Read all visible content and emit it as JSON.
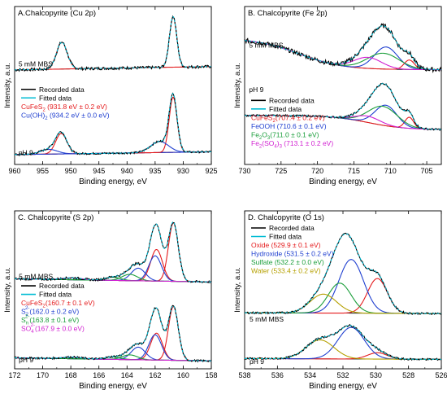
{
  "chart_data": [
    {
      "type": "line",
      "title": "A.Chalcopyrite (Cu 2p)",
      "xlabel": "Binding energy, eV",
      "ylabel": "Intensity, a.u.",
      "xlim": [
        960,
        925
      ],
      "xticks": [
        960,
        955,
        950,
        945,
        940,
        935,
        930,
        925
      ],
      "ylim": [
        0,
        100
      ],
      "labels": [
        {
          "text": "5 mM MBS",
          "x": 959.3,
          "y": 62,
          "color": "#000000"
        },
        {
          "text": "pH 9",
          "x": 959.3,
          "y": 6,
          "color": "#000000"
        }
      ],
      "legend": [
        {
          "kind": "line",
          "color": "#000000",
          "text": "Recorded data"
        },
        {
          "kind": "line",
          "color": "#00bcd4",
          "text": "Fitted data"
        },
        {
          "kind": "text",
          "color": "#e41a1c",
          "text": "CuFeS",
          "sub": "2",
          "rest": " (931.8 eV ± 0.2 eV)"
        },
        {
          "kind": "text",
          "color": "#1f3fd0",
          "text": "Cu(OH)",
          "sub": "2",
          "rest": " (934.2 eV ± 0.0 eV)"
        }
      ],
      "traces": [
        {
          "name": "5 mM MBS",
          "baseline": 62,
          "drift": -0.06,
          "noise": 0.9,
          "peaks": [
            {
              "center": 951.6,
              "height": 17,
              "width": 0.95,
              "color": "#e41a1c"
            },
            {
              "center": 931.8,
              "height": 32,
              "width": 0.65,
              "color": "#e41a1c"
            }
          ]
        },
        {
          "name": "pH 9",
          "baseline": 8,
          "drift": -0.05,
          "noise": 0.6,
          "peaks": [
            {
              "center": 951.7,
              "height": 13,
              "width": 1.0,
              "color": "#e41a1c"
            },
            {
              "center": 953.9,
              "height": 3,
              "width": 1.5,
              "color": "#1f3fd0"
            },
            {
              "center": 931.8,
              "height": 35,
              "width": 0.7,
              "color": "#e41a1c"
            },
            {
              "center": 934.2,
              "height": 7,
              "width": 1.6,
              "color": "#1f3fd0"
            }
          ]
        }
      ]
    },
    {
      "type": "line",
      "title": "B. Chalcopyrite (Fe 2p)",
      "xlabel": "Binding energy, eV",
      "ylabel": "Intensity, a.u.",
      "xlim": [
        730,
        703
      ],
      "xticks": [
        730,
        725,
        720,
        715,
        710,
        705
      ],
      "ylim": [
        0,
        100
      ],
      "labels": [
        {
          "text": "5 mM MBS",
          "x": 729.4,
          "y": 74,
          "color": "#000000"
        },
        {
          "text": "pH 9",
          "x": 729.4,
          "y": 46,
          "color": "#000000"
        }
      ],
      "legend": [
        {
          "kind": "line",
          "color": "#000000",
          "text": "Recorded data"
        },
        {
          "kind": "line",
          "color": "#00bcd4",
          "text": "Fitted data"
        },
        {
          "kind": "text",
          "color": "#e41a1c",
          "text": "CuFeS",
          "sub": "2",
          "rest": "(707.4 ± 0.2 eV)"
        },
        {
          "kind": "text",
          "color": "#1f3fd0",
          "text": "FeOOH (710.6 ± 0.1 eV)",
          "sub": "",
          "rest": ""
        },
        {
          "kind": "text",
          "color": "#1a9e3a",
          "text": "Fe",
          "sub": "2",
          "text2": "O",
          "sub2": "3",
          "rest": "(711.0 ± 0.1 eV)"
        },
        {
          "kind": "text",
          "color": "#d11fd1",
          "text": "Fe",
          "sub": "2",
          "text2": "(SO",
          "sub2": "4",
          "text3": ")",
          "sub3": "3",
          "rest": " (713.1 ± 0.2 eV)"
        }
      ],
      "traces": [
        {
          "name": "5 mM MBS",
          "baseline": 60,
          "bgStep": 20,
          "bgCenter": 722.5,
          "bgWidth": 3,
          "drift": 0,
          "noise": 1.4,
          "peaks": [
            {
              "center": 707.4,
              "height": 6,
              "width": 0.7,
              "color": "#e41a1c"
            },
            {
              "center": 710.6,
              "height": 14,
              "width": 1.6,
              "color": "#1f3fd0"
            },
            {
              "center": 711.0,
              "height": 10,
              "width": 2.2,
              "color": "#1a9e3a"
            },
            {
              "center": 713.1,
              "height": 7,
              "width": 1.9,
              "color": "#d11fd1"
            }
          ]
        },
        {
          "name": "pH 9",
          "baseline": 22,
          "bgStep": 9,
          "bgCenter": 713,
          "bgWidth": 2.5,
          "drift": 0,
          "noise": 0.6,
          "peaks": [
            {
              "center": 707.4,
              "height": 7,
              "width": 0.6,
              "color": "#e41a1c"
            },
            {
              "center": 710.6,
              "height": 13,
              "width": 1.5,
              "color": "#1f3fd0"
            },
            {
              "center": 711.0,
              "height": 12,
              "width": 2.0,
              "color": "#1a9e3a"
            },
            {
              "center": 713.1,
              "height": 4,
              "width": 1.7,
              "color": "#d11fd1"
            }
          ]
        }
      ]
    },
    {
      "type": "line",
      "title": "C. Chalcopyrite (S 2p)",
      "xlabel": "Binding energy, eV",
      "ylabel": "Intensity, a.u.",
      "xlim": [
        172,
        158
      ],
      "xticks": [
        172,
        170,
        168,
        166,
        164,
        162,
        160,
        158
      ],
      "ylim": [
        0,
        100
      ],
      "labels": [
        {
          "text": "5 mM MBS",
          "x": 171.7,
          "y": 57,
          "color": "#000000"
        },
        {
          "text": "pH 9",
          "x": 171.7,
          "y": 4,
          "color": "#000000"
        }
      ],
      "legend": [
        {
          "kind": "line",
          "color": "#000000",
          "text": "Recorded data"
        },
        {
          "kind": "line",
          "color": "#00bcd4",
          "text": "Fitted data"
        },
        {
          "kind": "text",
          "color": "#e41a1c",
          "text": "CuFeS",
          "sub": "2",
          "rest": "(160.7 ± 0.1 eV)"
        },
        {
          "kind": "text",
          "color": "#1f3fd0",
          "text": "S",
          "sub": "2",
          "sup": "2-",
          "rest": "(162.0 ± 0.2 eV)"
        },
        {
          "kind": "text",
          "color": "#1a9e3a",
          "text": "S",
          "sub": "n",
          "sup": "2-",
          "rest": "(163.8 ± 0.1 eV)"
        },
        {
          "kind": "text",
          "color": "#d11fd1",
          "text": "SO",
          "sub": "4",
          "sup": "2-",
          "rest": "(167.9 ± 0.0 eV)"
        }
      ],
      "traces": [
        {
          "name": "5 mM MBS",
          "baseline": 55,
          "drift": 0.14,
          "noise": 0.7,
          "peaks": [
            {
              "center": 160.7,
              "height": 37,
              "width": 0.35,
              "color": "#e41a1c"
            },
            {
              "center": 161.9,
              "height": 20,
              "width": 0.42,
              "color": "#e41a1c"
            },
            {
              "center": 162.0,
              "height": 16,
              "width": 0.45,
              "color": "#1f3fd0"
            },
            {
              "center": 163.2,
              "height": 8,
              "width": 0.5,
              "color": "#1f3fd0"
            },
            {
              "center": 163.8,
              "height": 4,
              "width": 0.55,
              "color": "#1a9e3a"
            },
            {
              "center": 165.0,
              "height": 2,
              "width": 0.55,
              "color": "#1a9e3a"
            },
            {
              "center": 167.9,
              "height": 1.2,
              "width": 0.7,
              "color": "#d11fd1"
            }
          ]
        },
        {
          "name": "pH 9",
          "baseline": 5,
          "drift": 0.14,
          "noise": 0.6,
          "peaks": [
            {
              "center": 160.7,
              "height": 34,
              "width": 0.35,
              "color": "#e41a1c"
            },
            {
              "center": 161.9,
              "height": 17,
              "width": 0.42,
              "color": "#e41a1c"
            },
            {
              "center": 162.0,
              "height": 16,
              "width": 0.45,
              "color": "#1f3fd0"
            },
            {
              "center": 163.2,
              "height": 8,
              "width": 0.5,
              "color": "#1f3fd0"
            },
            {
              "center": 163.8,
              "height": 3,
              "width": 0.55,
              "color": "#1a9e3a"
            },
            {
              "center": 165.0,
              "height": 1.5,
              "width": 0.55,
              "color": "#1a9e3a"
            },
            {
              "center": 167.9,
              "height": 1,
              "width": 0.7,
              "color": "#d11fd1"
            }
          ]
        }
      ]
    },
    {
      "type": "line",
      "title": "D. Chalcopyrite (O 1s)",
      "xlabel": "Binding energy, eV",
      "ylabel": "Intensity, a.u.",
      "xlim": [
        538,
        526
      ],
      "xticks": [
        538,
        536,
        534,
        532,
        530,
        528,
        526
      ],
      "ylim": [
        0,
        100
      ],
      "labels": [
        {
          "text": "5 mM MBS",
          "x": 537.7,
          "y": 30,
          "color": "#000000"
        },
        {
          "text": "pH 9",
          "x": 537.7,
          "y": 3,
          "color": "#000000"
        }
      ],
      "legend": [
        {
          "kind": "line",
          "color": "#000000",
          "text": "Recorded data"
        },
        {
          "kind": "line",
          "color": "#00bcd4",
          "text": "Fitted data"
        },
        {
          "kind": "text",
          "color": "#e41a1c",
          "text": "Oxide (529.9 ± 0.1 eV)",
          "sub": "",
          "rest": ""
        },
        {
          "kind": "text",
          "color": "#1f3fd0",
          "text": "Hydroxide (531.5 ± 0.2 eV)",
          "sub": "",
          "rest": ""
        },
        {
          "kind": "text",
          "color": "#1a9e3a",
          "text": "Sulfate (532.2 ± 0.0 eV)",
          "sub": "",
          "rest": ""
        },
        {
          "kind": "text",
          "color": "#b5a000",
          "text": "Water (533.4 ± 0.2 eV)",
          "sub": "",
          "rest": ""
        }
      ],
      "traces": [
        {
          "name": "5 mM MBS",
          "baseline": 35,
          "drift": 0.04,
          "noise": 0.6,
          "peaks": [
            {
              "center": 529.9,
              "height": 22,
              "width": 0.6,
              "color": "#e41a1c"
            },
            {
              "center": 531.5,
              "height": 34,
              "width": 0.75,
              "color": "#1f3fd0"
            },
            {
              "center": 532.2,
              "height": 19,
              "width": 0.7,
              "color": "#1a9e3a"
            },
            {
              "center": 533.2,
              "height": 12,
              "width": 0.8,
              "color": "#b5a000"
            }
          ]
        },
        {
          "name": "pH 9",
          "baseline": 6,
          "drift": 0.04,
          "noise": 0.6,
          "peaks": [
            {
              "center": 529.9,
              "height": 4,
              "width": 0.6,
              "color": "#e41a1c"
            },
            {
              "center": 531.5,
              "height": 20,
              "width": 0.8,
              "color": "#1f3fd0"
            },
            {
              "center": 533.4,
              "height": 12,
              "width": 0.85,
              "color": "#b5a000"
            }
          ]
        }
      ]
    }
  ]
}
